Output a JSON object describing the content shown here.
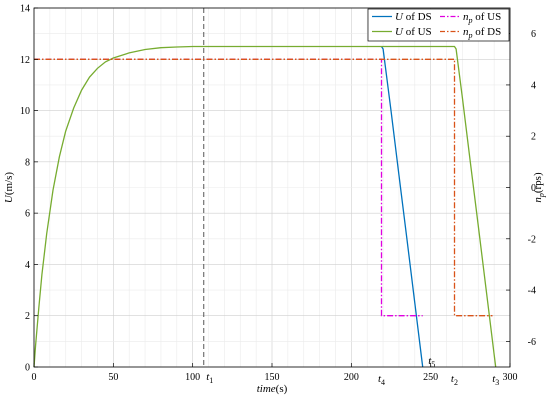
{
  "chart_data": {
    "type": "line",
    "xlabel": "time(s)",
    "ylabel_left": "U(m/s)",
    "ylabel_right": "n_p(rps)",
    "xlim": [
      0,
      300
    ],
    "ylim_left": [
      0,
      14
    ],
    "ylim_right": [
      -7,
      7
    ],
    "x_ticks": [
      0,
      50,
      100,
      150,
      200,
      250,
      300
    ],
    "y_left_ticks": [
      0,
      2,
      4,
      6,
      8,
      10,
      12,
      14
    ],
    "y_right_ticks": [
      -6,
      -4,
      -2,
      0,
      2,
      4,
      6
    ],
    "grid": true,
    "legend_position": "top-right",
    "legend": [
      {
        "label": "U of DS",
        "color": "#0072BD",
        "style": "solid"
      },
      {
        "label": "U of US",
        "color": "#77AC30",
        "style": "solid"
      },
      {
        "label": "n_p of US",
        "color": "#E000E0",
        "style": "dash-dot"
      },
      {
        "label": "n_p of DS",
        "color": "#D95319",
        "style": "dash-dot"
      }
    ],
    "series": [
      {
        "name": "U of DS",
        "axis": "left",
        "points": [
          [
            219,
            12.5
          ],
          [
            220,
            12.4
          ],
          [
            225,
            10.0
          ],
          [
            230,
            7.5
          ],
          [
            235,
            5.0
          ],
          [
            240,
            2.5
          ],
          [
            245,
            0.0
          ]
        ]
      },
      {
        "name": "U of US",
        "axis": "left",
        "points": [
          [
            0,
            0.0
          ],
          [
            1,
            0.85
          ],
          [
            3,
            2.3
          ],
          [
            5,
            3.6
          ],
          [
            8,
            5.2
          ],
          [
            12,
            6.9
          ],
          [
            16,
            8.2
          ],
          [
            20,
            9.2
          ],
          [
            25,
            10.1
          ],
          [
            30,
            10.8
          ],
          [
            35,
            11.3
          ],
          [
            40,
            11.65
          ],
          [
            45,
            11.9
          ],
          [
            50,
            12.05
          ],
          [
            60,
            12.25
          ],
          [
            70,
            12.38
          ],
          [
            80,
            12.45
          ],
          [
            90,
            12.48
          ],
          [
            100,
            12.5
          ],
          [
            150,
            12.5
          ],
          [
            200,
            12.5
          ],
          [
            265,
            12.5
          ],
          [
            266,
            12.4
          ],
          [
            270,
            10.5
          ],
          [
            275,
            8.0
          ],
          [
            280,
            5.5
          ],
          [
            285,
            3.0
          ],
          [
            290,
            0.5
          ],
          [
            291,
            0.0
          ]
        ]
      },
      {
        "name": "n_p of US",
        "axis": "right",
        "points": [
          [
            0,
            5.0
          ],
          [
            219,
            5.0
          ],
          [
            219,
            -5.0
          ],
          [
            245,
            -5.0
          ]
        ]
      },
      {
        "name": "n_p of DS",
        "axis": "right",
        "points": [
          [
            0,
            5.0
          ],
          [
            265,
            5.0
          ],
          [
            265,
            -5.0
          ],
          [
            289,
            -5.0
          ]
        ]
      }
    ],
    "vertical_marker": {
      "x": 107
    },
    "markers": [
      {
        "label": "t1",
        "x": 107
      },
      {
        "label": "t2",
        "x": 265
      },
      {
        "label": "t3",
        "x": 291
      },
      {
        "label": "t4",
        "x": 219
      },
      {
        "label": "t5",
        "x": 245
      }
    ]
  }
}
